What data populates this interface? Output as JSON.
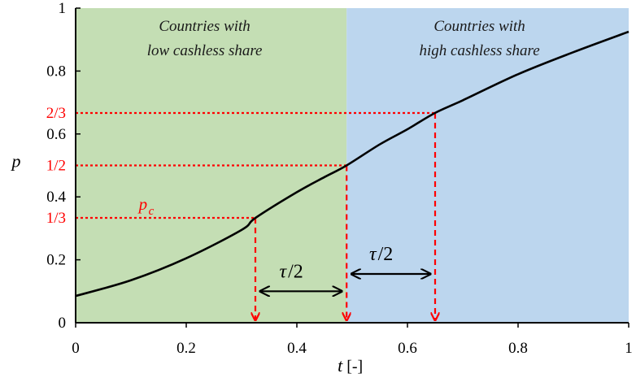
{
  "chart_data": {
    "type": "line",
    "xlabel": "t",
    "xlabel_unit": "[-]",
    "ylabel": "p",
    "xlim": [
      0,
      1
    ],
    "ylim": [
      0,
      1
    ],
    "x_ticks": [
      0,
      0.2,
      0.4,
      0.6,
      0.8,
      1
    ],
    "x_tick_labels": [
      "0",
      "0.2",
      "0.4",
      "0.6",
      "0.8",
      "1"
    ],
    "y_ticks": [
      0,
      0.2,
      0.4,
      0.6,
      0.8,
      1
    ],
    "y_tick_labels": [
      "0",
      "0.2",
      "0.4",
      "0.6",
      "0.8",
      "1"
    ],
    "grid": false,
    "series": [
      {
        "x": [
          0.0,
          0.1,
          0.2,
          0.3,
          0.325,
          0.4,
          0.45,
          0.49,
          0.55,
          0.6,
          0.65,
          0.7,
          0.8,
          0.9,
          1.0
        ],
        "y": [
          0.085,
          0.135,
          0.205,
          0.295,
          0.333,
          0.415,
          0.463,
          0.5,
          0.567,
          0.615,
          0.667,
          0.707,
          0.79,
          0.86,
          0.925
        ]
      }
    ],
    "regions": [
      {
        "label_line1": "Countries with",
        "label_line2": "low cashless share",
        "x_from": 0,
        "x_to": 0.49,
        "color": "#c4deb4"
      },
      {
        "label_line1": "Countries with",
        "label_line2": "high cashless share",
        "x_from": 0.49,
        "x_to": 1,
        "color": "#bcd6ee"
      }
    ],
    "reference_levels": [
      {
        "label": "1/3",
        "y": 0.3333,
        "x": 0.325
      },
      {
        "label": "1/2",
        "y": 0.5,
        "x": 0.49
      },
      {
        "label": "2/3",
        "y": 0.6667,
        "x": 0.65
      }
    ],
    "critical_label": "p",
    "critical_label_sub": "c",
    "intervals": [
      {
        "label_greek": "τ",
        "label_rest": "/2",
        "x_from": 0.325,
        "x_to": 0.49,
        "y": 0.1
      },
      {
        "label_greek": "τ",
        "label_rest": "/2",
        "x_from": 0.49,
        "x_to": 0.65,
        "y": 0.155
      }
    ],
    "colors": {
      "curve": "#000000",
      "reference": "#ff0000",
      "axis": "#000000"
    }
  }
}
